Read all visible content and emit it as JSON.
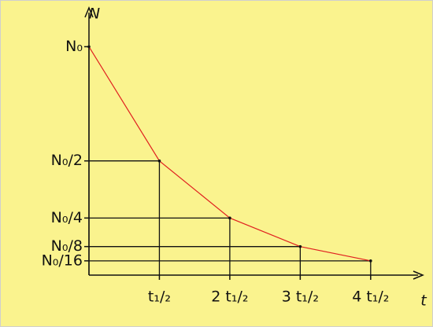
{
  "chart_data": {
    "type": "line",
    "xlabel": "t",
    "ylabel": "N",
    "x": [
      0,
      1,
      2,
      3,
      4
    ],
    "series": [
      {
        "color": "#e02020",
        "values": [
          1,
          0.5,
          0.25,
          0.125,
          0.0625
        ]
      }
    ],
    "xlim": [
      0,
      4.74
    ],
    "ylim": [
      0,
      1.17
    ],
    "xticks": [
      {
        "value": 1,
        "label": "t₁/₂"
      },
      {
        "value": 2,
        "label": "2 t₁/₂"
      },
      {
        "value": 3,
        "label": "3 t₁/₂"
      },
      {
        "value": 4,
        "label": "4 t₁/₂"
      }
    ],
    "yticks": [
      {
        "value": 1,
        "label": "N₀"
      },
      {
        "value": 0.5,
        "label": "N₀/2"
      },
      {
        "value": 0.25,
        "label": "N₀/4"
      },
      {
        "value": 0.125,
        "label": "N₀/8"
      },
      {
        "value": 0.0625,
        "label": "N₀/16"
      }
    ]
  }
}
